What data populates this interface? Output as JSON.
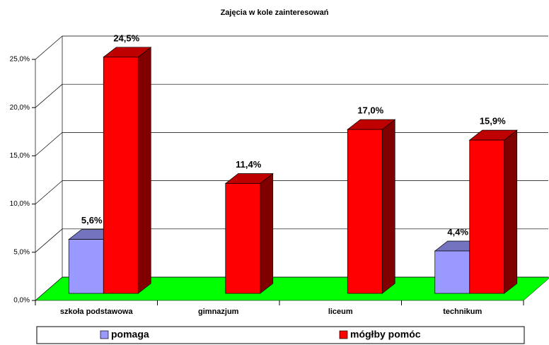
{
  "chart_data": {
    "type": "bar3d",
    "title": "Zajęcia w kole zainteresowań",
    "categories": [
      "szkoła podstawowa",
      "gimnazjum",
      "liceum",
      "technikum"
    ],
    "series": [
      {
        "name": "pomaga",
        "color": "#9999ff",
        "values": [
          5.6,
          null,
          null,
          4.4
        ],
        "value_labels": [
          "5,6%",
          null,
          null,
          "4,4%"
        ]
      },
      {
        "name": "mógłby pomóc",
        "color": "#ff0000",
        "values": [
          24.5,
          11.4,
          17.0,
          15.9
        ],
        "value_labels": [
          "24,5%",
          "11,4%",
          "17,0%",
          "15,9%"
        ]
      }
    ],
    "ylim": [
      0,
      25
    ],
    "yticks": [
      {
        "value": 0,
        "label": "0,0%"
      },
      {
        "value": 5,
        "label": "5,0%"
      },
      {
        "value": 10,
        "label": "10,0%"
      },
      {
        "value": 15,
        "label": "15,0%"
      },
      {
        "value": 20,
        "label": "20,0%"
      },
      {
        "value": 25,
        "label": "25,0%"
      }
    ],
    "grid": true,
    "legend": "bottom",
    "floor_color": "#00ff00"
  }
}
